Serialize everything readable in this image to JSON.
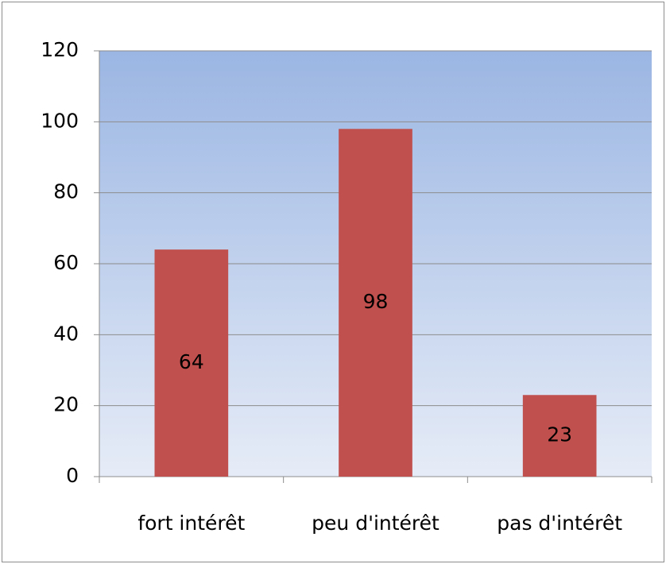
{
  "chart_data": {
    "type": "bar",
    "categories": [
      "fort intérêt",
      "peu d'intérêt",
      "pas d'intérêt"
    ],
    "values": [
      64,
      98,
      23
    ],
    "color": "#c0504d",
    "ylim": [
      0,
      120
    ],
    "yticks": [
      0,
      20,
      40,
      60,
      80,
      100,
      120
    ],
    "grid": true
  }
}
